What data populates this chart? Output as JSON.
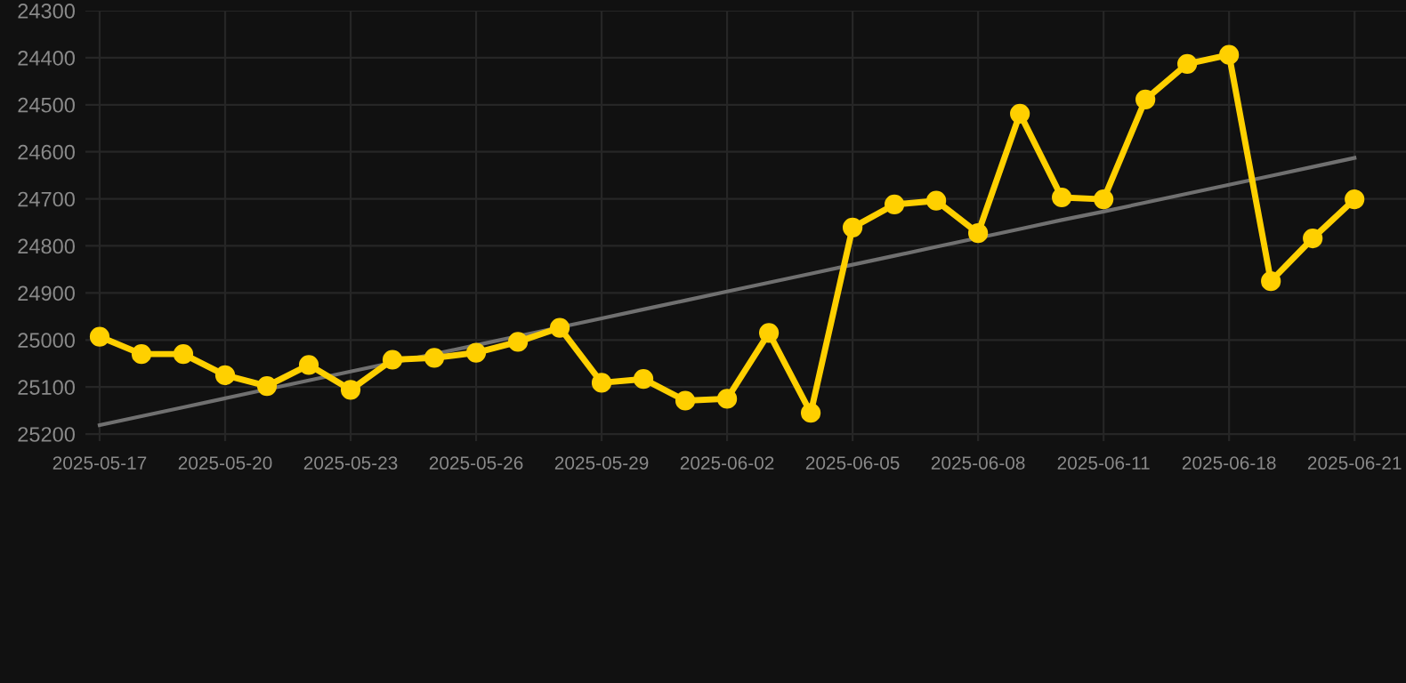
{
  "chart_data": {
    "type": "line",
    "categories": [
      "2025-05-17",
      null,
      null,
      "2025-05-20",
      null,
      null,
      "2025-05-23",
      null,
      null,
      "2025-05-26",
      null,
      null,
      "2025-05-29",
      null,
      null,
      "2025-06-02",
      null,
      null,
      "2025-06-05",
      null,
      null,
      "2025-06-08",
      null,
      null,
      "2025-06-11",
      null,
      null,
      "2025-06-18",
      null,
      null,
      "2025-06-21"
    ],
    "series": [
      {
        "color": "#ffd000",
        "marker": "circle",
        "values": [
          24993,
          25030,
          25030,
          25075,
          25098,
          25053,
          25106,
          25042,
          25038,
          25027,
          25004,
          24974,
          25091,
          25083,
          25129,
          25125,
          24985,
          25155,
          24761,
          24712,
          24704,
          24773,
          24519,
          24697,
          24701,
          24489,
          24413,
          24394,
          24875,
          24784,
          24701
        ]
      },
      {
        "type": "line",
        "color": "#707070",
        "marker": "none",
        "values": [
          25181,
          25162,
          25143,
          25124,
          25105,
          25086,
          25067,
          25048,
          25030,
          25011,
          24992,
          24973,
          24954,
          24935,
          24916,
          24897,
          24878,
          24859,
          24840,
          24821,
          24802,
          24783,
          24764,
          24745,
          24727,
          24708,
          24689,
          24670,
          24651,
          24632,
          24613
        ]
      }
    ],
    "ylim": [
      25215,
      24300
    ],
    "yticks": [
      24300,
      24400,
      24500,
      24600,
      24700,
      24800,
      24900,
      25000,
      25100,
      25200
    ],
    "grid": true
  }
}
